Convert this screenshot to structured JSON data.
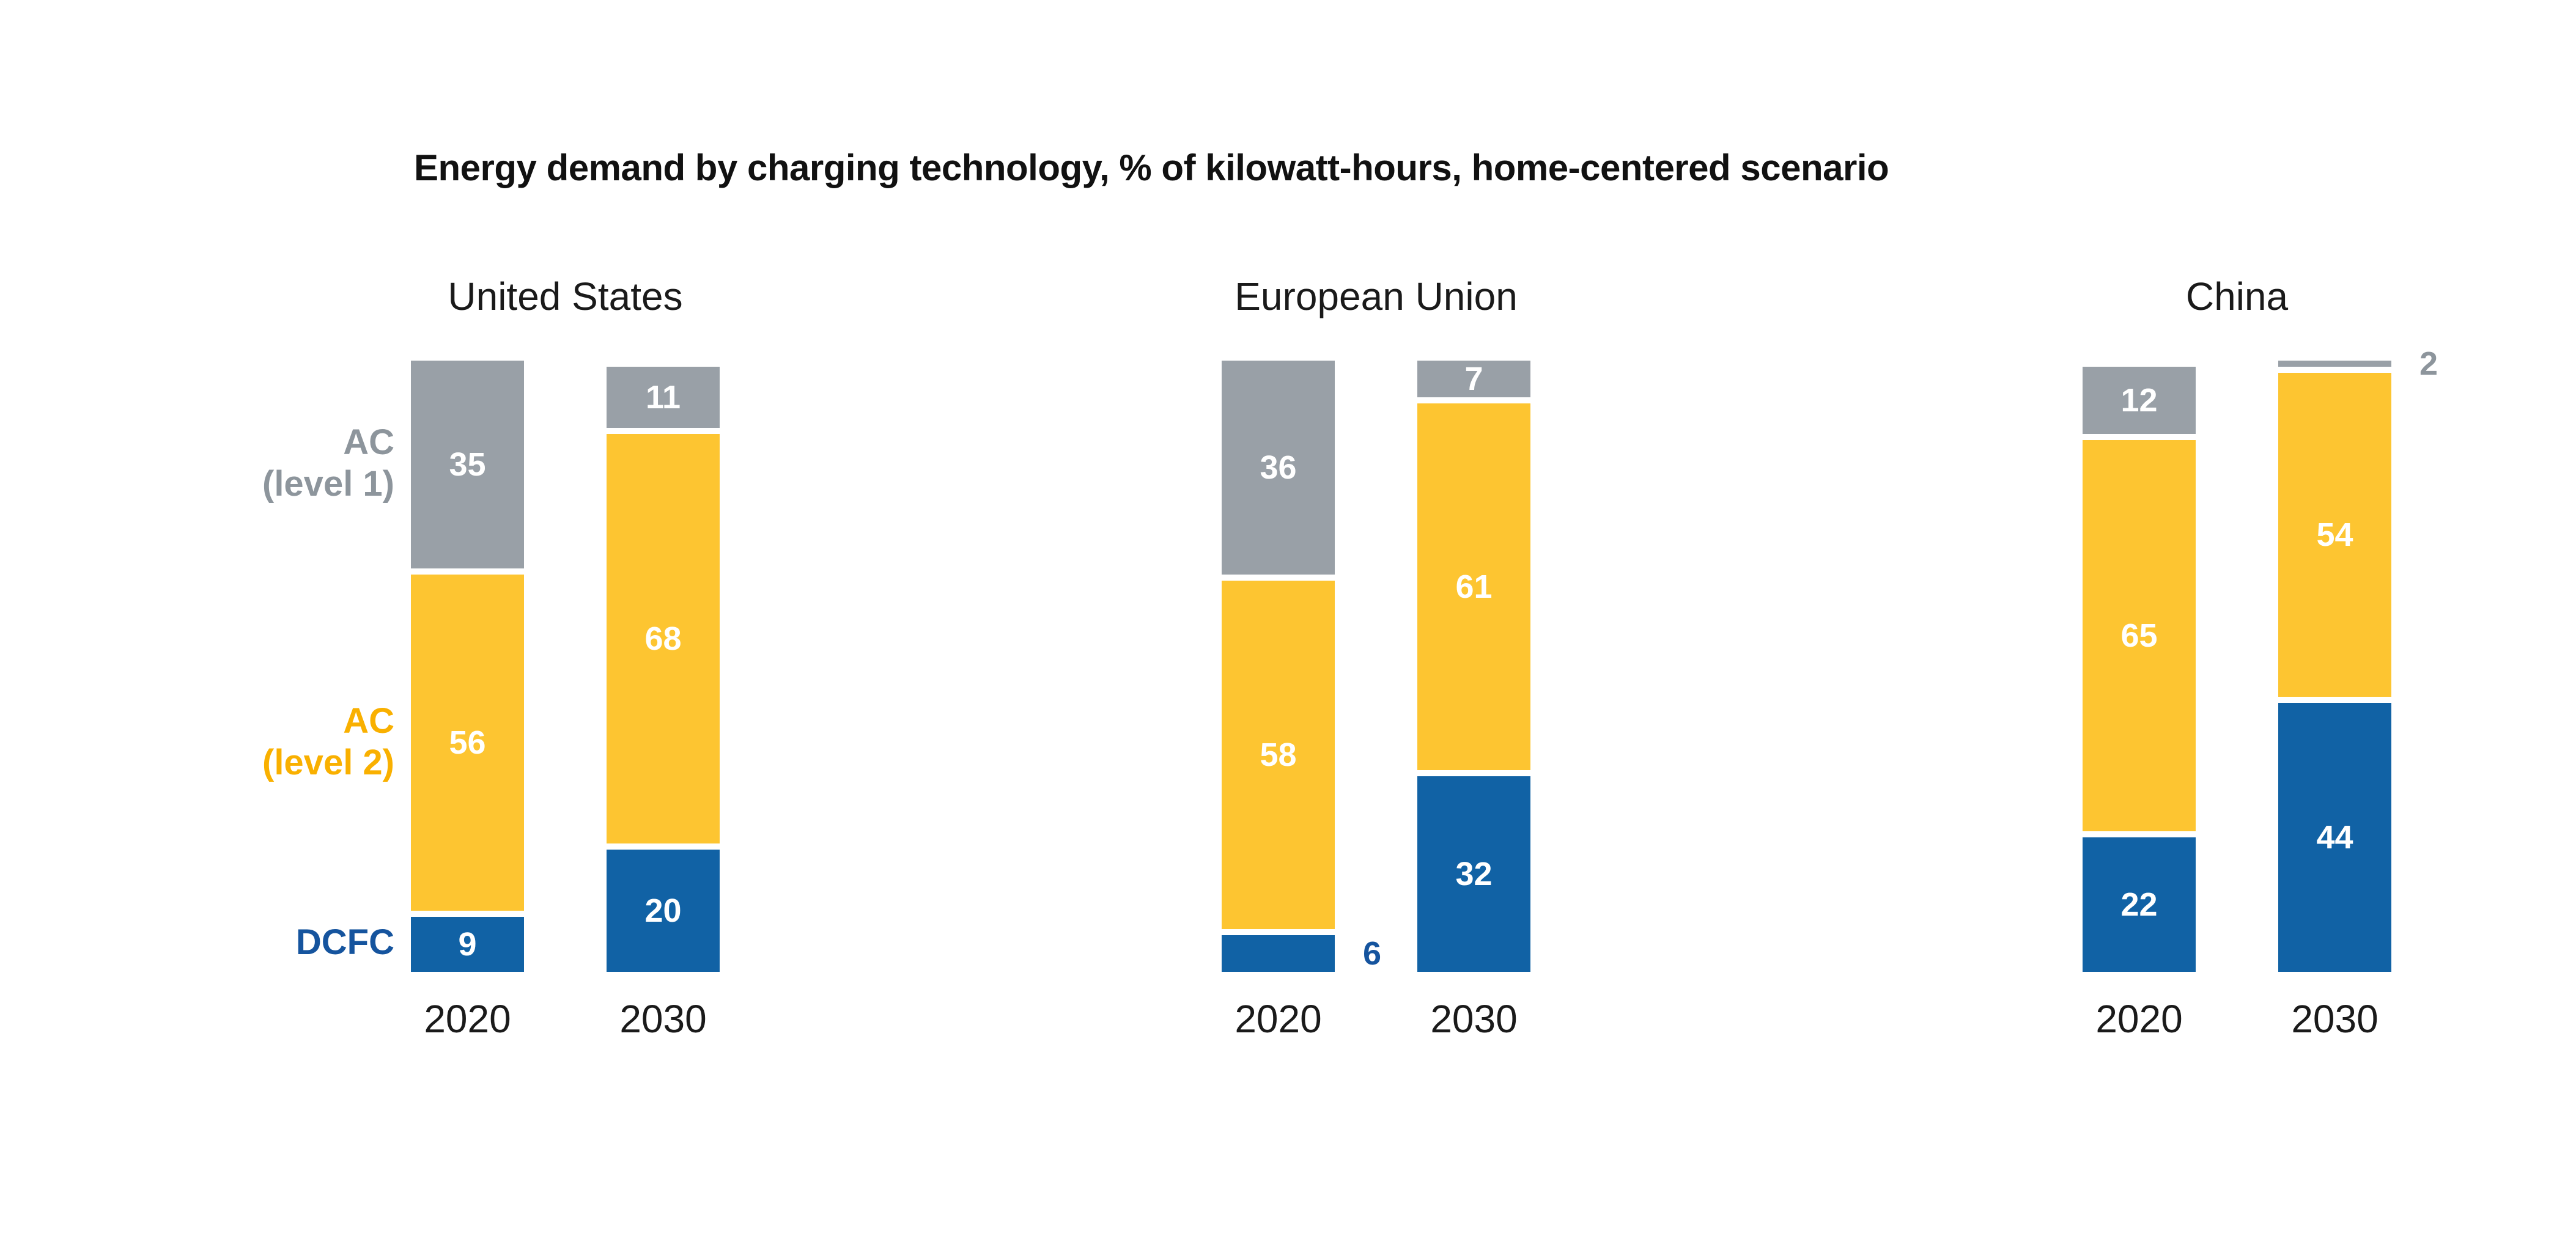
{
  "title": "Energy demand by charging technology, % of kilowatt-hours, home-centered scenario",
  "colors": {
    "bar_gray": "#99a0a7",
    "bar_yellow": "#fdc531",
    "bar_blue": "#1162a5",
    "legend_gray": "#8d959c",
    "legend_yellow": "#f9b000",
    "legend_blue": "#15549e",
    "value_label_white": "#ffffff",
    "text_dark": "#1a1a1a"
  },
  "legend": [
    {
      "id": "ac_level1",
      "lines": [
        "AC",
        "(level 1)"
      ]
    },
    {
      "id": "ac_level2",
      "lines": [
        "AC",
        "(level 2)"
      ]
    },
    {
      "id": "dcfc",
      "lines": [
        "DCFC"
      ]
    }
  ],
  "chart_data": {
    "type": "bar",
    "stacked": true,
    "title": "Energy demand by charging technology, % of kilowatt-hours, home-centered scenario",
    "value_unit": "% of kilowatt-hours",
    "ylim": [
      0,
      100
    ],
    "grid": false,
    "legend_position": "left",
    "series_top_to_bottom": [
      {
        "id": "ac_level1",
        "name": "AC (level 1)",
        "color": "#99a0a7",
        "outside_label_color": "#8d959c"
      },
      {
        "id": "ac_level2",
        "name": "AC (level 2)",
        "color": "#fdc531",
        "outside_label_color": "#f9b000"
      },
      {
        "id": "dcfc",
        "name": "DCFC",
        "color": "#1162a5",
        "outside_label_color": "#15549e"
      }
    ],
    "groups": [
      {
        "label": "United States",
        "bars": [
          {
            "x": "2020",
            "values": {
              "ac_level1": 35,
              "ac_level2": 56,
              "dcfc": 9
            }
          },
          {
            "x": "2030",
            "values": {
              "ac_level1": 11,
              "ac_level2": 68,
              "dcfc": 20
            }
          }
        ]
      },
      {
        "label": "European Union",
        "bars": [
          {
            "x": "2020",
            "values": {
              "ac_level1": 36,
              "ac_level2": 58,
              "dcfc": 6
            }
          },
          {
            "x": "2030",
            "values": {
              "ac_level1": 7,
              "ac_level2": 61,
              "dcfc": 32
            }
          }
        ]
      },
      {
        "label": "China",
        "bars": [
          {
            "x": "2020",
            "values": {
              "ac_level1": 12,
              "ac_level2": 65,
              "dcfc": 22
            }
          },
          {
            "x": "2030",
            "values": {
              "ac_level1": 2,
              "ac_level2": 54,
              "dcfc": 44
            }
          }
        ]
      }
    ]
  }
}
